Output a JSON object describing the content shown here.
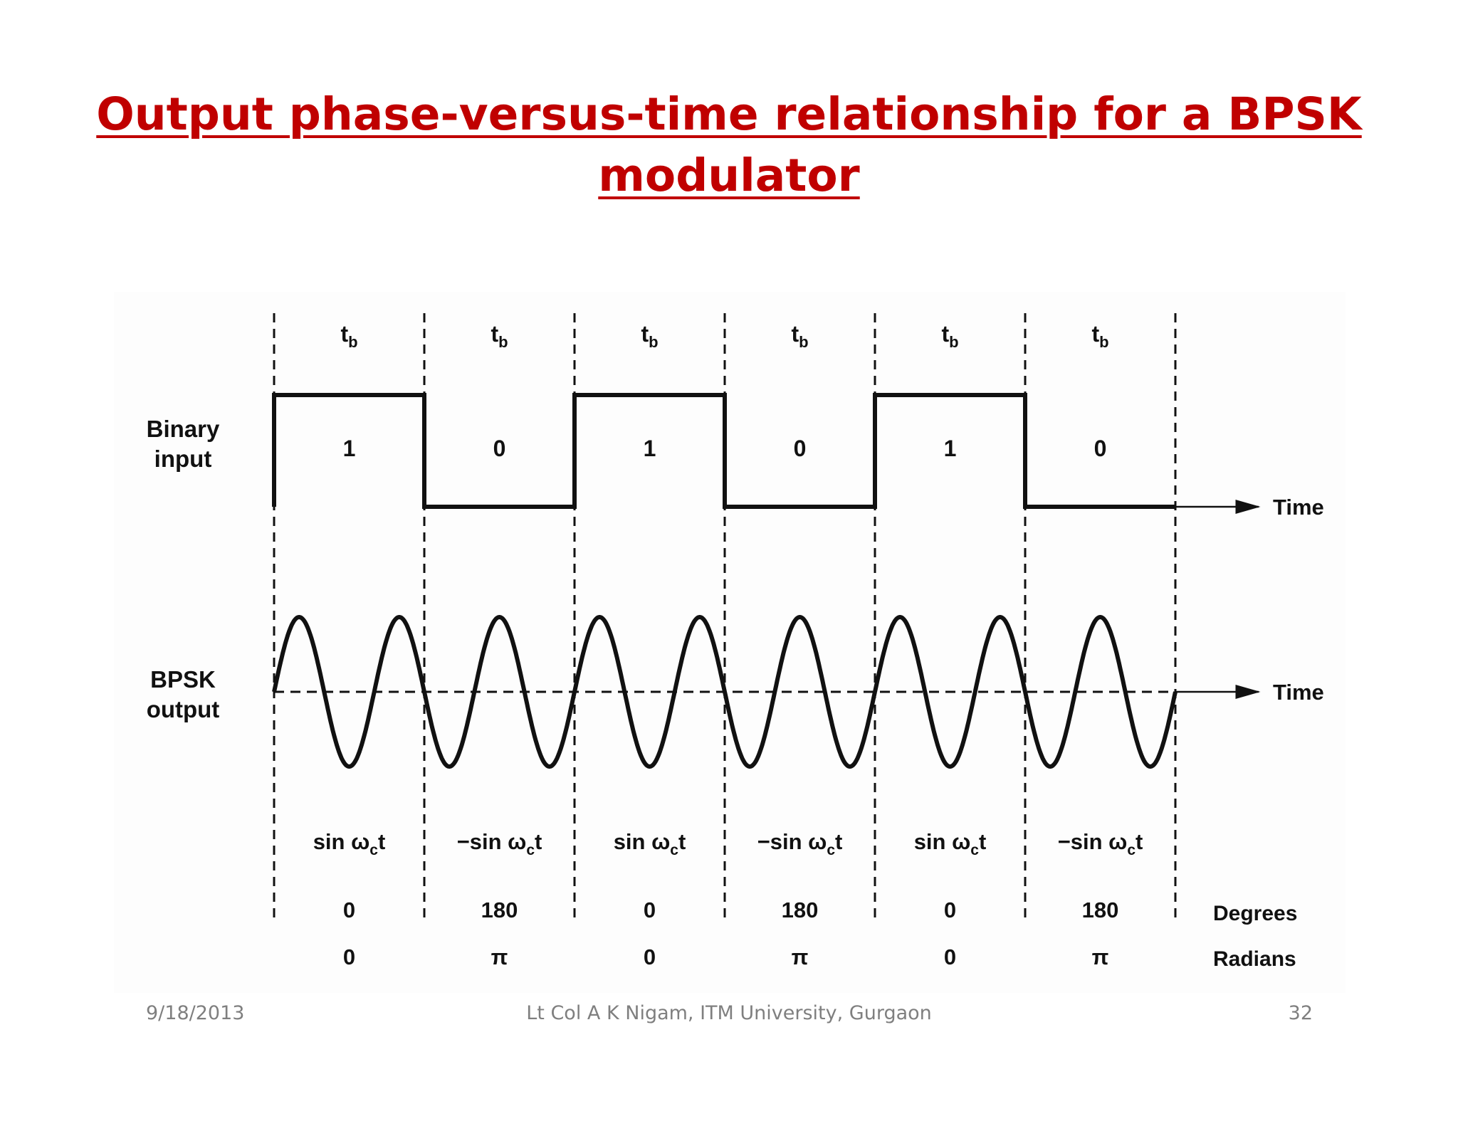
{
  "title": {
    "line1": "Output phase-versus-time relationship for a BPSK",
    "line2": "modulator"
  },
  "diagram": {
    "bit_period_label": "t",
    "bit_period_sub": "b",
    "row_labels": {
      "binary_input": [
        "Binary",
        "input"
      ],
      "bpsk_output": [
        "BPSK",
        "output"
      ]
    },
    "time_axis_label": "Time",
    "omega": "ω",
    "omega_sub": "c",
    "bits": [
      {
        "bit": "1",
        "sign": "",
        "degrees": "0",
        "radians": "0"
      },
      {
        "bit": "0",
        "sign": "−",
        "degrees": "180",
        "radians": "π"
      },
      {
        "bit": "1",
        "sign": "",
        "degrees": "0",
        "radians": "0"
      },
      {
        "bit": "0",
        "sign": "−",
        "degrees": "180",
        "radians": "π"
      },
      {
        "bit": "1",
        "sign": "",
        "degrees": "0",
        "radians": "0"
      },
      {
        "bit": "0",
        "sign": "−",
        "degrees": "180",
        "radians": "π"
      }
    ],
    "sin_word": "sin",
    "t_symbol": "t",
    "degrees_label": "Degrees",
    "radians_label": "Radians",
    "line_color": "#111111"
  },
  "footer": {
    "date": "9/18/2013",
    "author": "Lt Col A K Nigam, ITM University, Gurgaon",
    "page": "32"
  },
  "colors": {
    "title": "#c00000",
    "footer": "#7f7f7f"
  }
}
